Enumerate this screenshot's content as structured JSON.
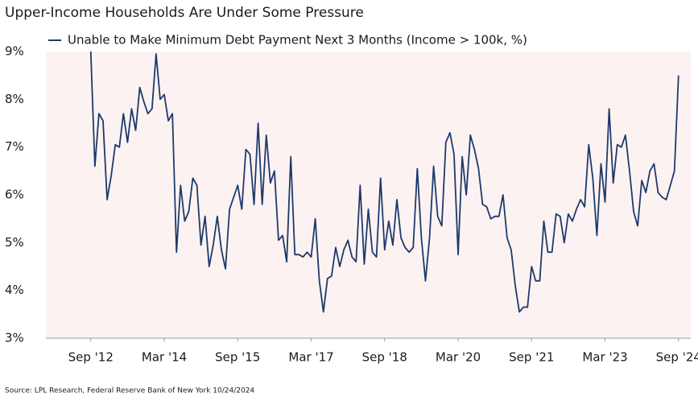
{
  "chart_data": {
    "type": "line",
    "title": "Upper-Income Households Are Under Some Pressure",
    "source": "Source: LPL Research, Federal Reserve Bank of New York 10/24/2024",
    "legend": "top-left",
    "background": "#fdf2f2",
    "x": [
      "2012-09",
      "2012-10",
      "2012-11",
      "2012-12",
      "2013-01",
      "2013-02",
      "2013-03",
      "2013-04",
      "2013-05",
      "2013-06",
      "2013-07",
      "2013-08",
      "2013-09",
      "2013-10",
      "2013-11",
      "2013-12",
      "2014-01",
      "2014-02",
      "2014-03",
      "2014-04",
      "2014-05",
      "2014-06",
      "2014-07",
      "2014-08",
      "2014-09",
      "2014-10",
      "2014-11",
      "2014-12",
      "2015-01",
      "2015-02",
      "2015-03",
      "2015-04",
      "2015-05",
      "2015-06",
      "2015-07",
      "2015-08",
      "2015-09",
      "2015-10",
      "2015-11",
      "2015-12",
      "2016-01",
      "2016-02",
      "2016-03",
      "2016-04",
      "2016-05",
      "2016-06",
      "2016-07",
      "2016-08",
      "2016-09",
      "2016-10",
      "2016-11",
      "2016-12",
      "2017-01",
      "2017-02",
      "2017-03",
      "2017-04",
      "2017-05",
      "2017-06",
      "2017-07",
      "2017-08",
      "2017-09",
      "2017-10",
      "2017-11",
      "2017-12",
      "2018-01",
      "2018-02",
      "2018-03",
      "2018-04",
      "2018-05",
      "2018-06",
      "2018-07",
      "2018-08",
      "2018-09",
      "2018-10",
      "2018-11",
      "2018-12",
      "2019-01",
      "2019-02",
      "2019-03",
      "2019-04",
      "2019-05",
      "2019-06",
      "2019-07",
      "2019-08",
      "2019-09",
      "2019-10",
      "2019-11",
      "2019-12",
      "2020-01",
      "2020-02",
      "2020-03",
      "2020-04",
      "2020-05",
      "2020-06",
      "2020-07",
      "2020-08",
      "2020-09",
      "2020-10",
      "2020-11",
      "2020-12",
      "2021-01",
      "2021-02",
      "2021-03",
      "2021-04",
      "2021-05",
      "2021-06",
      "2021-07",
      "2021-08",
      "2021-09",
      "2021-10",
      "2021-11",
      "2021-12",
      "2022-01",
      "2022-02",
      "2022-03",
      "2022-04",
      "2022-05",
      "2022-06",
      "2022-07",
      "2022-08",
      "2022-09",
      "2022-10",
      "2022-11",
      "2022-12",
      "2023-01",
      "2023-02",
      "2023-03",
      "2023-04",
      "2023-05",
      "2023-06",
      "2023-07",
      "2023-08",
      "2023-09",
      "2023-10",
      "2023-11",
      "2023-12",
      "2024-01",
      "2024-02",
      "2024-03",
      "2024-04",
      "2024-05",
      "2024-06",
      "2024-07",
      "2024-08",
      "2024-09"
    ],
    "series": [
      {
        "name": "Unable to Make Minimum Debt Payment Next 3 Months (Income > 100k, %)",
        "color": "#1c3a6b",
        "values": [
          9.0,
          6.6,
          7.7,
          7.55,
          5.9,
          6.4,
          7.05,
          7.0,
          7.7,
          7.1,
          7.8,
          7.35,
          8.25,
          7.95,
          7.7,
          7.8,
          8.95,
          8.0,
          8.1,
          7.55,
          7.7,
          4.8,
          6.2,
          5.45,
          5.65,
          6.35,
          6.2,
          4.95,
          5.55,
          4.5,
          4.95,
          5.55,
          4.85,
          4.45,
          5.7,
          5.95,
          6.2,
          5.7,
          6.95,
          6.85,
          5.8,
          7.5,
          5.8,
          7.25,
          6.25,
          6.5,
          5.05,
          5.15,
          4.6,
          6.8,
          4.75,
          4.75,
          4.7,
          4.8,
          4.7,
          5.5,
          4.2,
          3.55,
          4.25,
          4.3,
          4.9,
          4.5,
          4.85,
          5.05,
          4.7,
          4.6,
          6.2,
          4.55,
          5.7,
          4.8,
          4.7,
          6.35,
          4.85,
          5.45,
          4.95,
          5.9,
          5.1,
          4.9,
          4.8,
          4.9,
          6.55,
          5.1,
          4.2,
          5.1,
          6.6,
          5.55,
          5.35,
          7.1,
          7.3,
          6.85,
          4.75,
          6.8,
          6.0,
          7.25,
          6.95,
          6.55,
          5.8,
          5.75,
          5.5,
          5.55,
          5.55,
          6.0,
          5.1,
          4.85,
          4.1,
          3.55,
          3.65,
          3.65,
          4.5,
          4.2,
          4.2,
          5.45,
          4.8,
          4.8,
          5.6,
          5.55,
          5.0,
          5.6,
          5.45,
          5.7,
          5.9,
          5.75,
          7.05,
          6.35,
          5.15,
          6.65,
          5.85,
          7.8,
          6.25,
          7.05,
          7.0,
          7.25,
          6.5,
          5.65,
          5.35,
          6.3,
          6.05,
          6.5,
          6.65,
          6.05,
          5.95,
          5.9,
          6.2,
          6.5,
          8.5
        ]
      }
    ],
    "xlim": [
      "2011-10",
      "2024-12"
    ],
    "xticks": [
      {
        "value": "2012-09",
        "label": "Sep '12"
      },
      {
        "value": "2014-03",
        "label": "Mar '14"
      },
      {
        "value": "2015-09",
        "label": "Sep '15"
      },
      {
        "value": "2017-03",
        "label": "Mar '17"
      },
      {
        "value": "2018-09",
        "label": "Sep '18"
      },
      {
        "value": "2020-03",
        "label": "Mar '20"
      },
      {
        "value": "2021-09",
        "label": "Sep '21"
      },
      {
        "value": "2023-03",
        "label": "Mar '23"
      },
      {
        "value": "2024-09",
        "label": "Sep '24"
      }
    ],
    "ylim": [
      3,
      9
    ],
    "yticks": [
      {
        "value": 3,
        "label": "3%"
      },
      {
        "value": 4,
        "label": "4%"
      },
      {
        "value": 5,
        "label": "5%"
      },
      {
        "value": 6,
        "label": "6%"
      },
      {
        "value": 7,
        "label": "7%"
      },
      {
        "value": 8,
        "label": "8%"
      },
      {
        "value": 9,
        "label": "9%"
      }
    ]
  }
}
